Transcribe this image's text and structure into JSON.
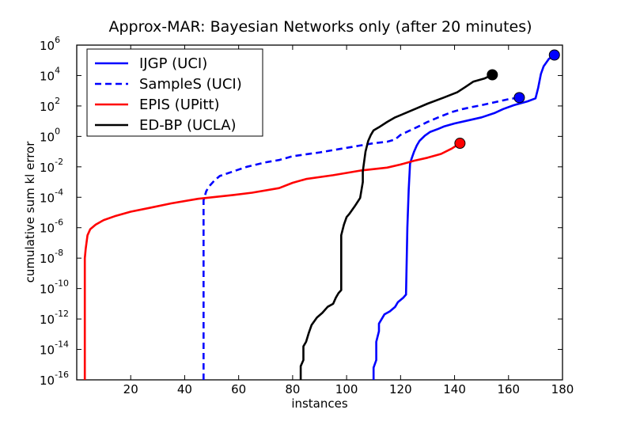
{
  "chart_data": {
    "type": "line",
    "title": "Approx-MAR: Bayesian Networks only (after 20 minutes)",
    "xlabel": "instances",
    "ylabel": "cumulative sum kl error",
    "xlim": [
      0,
      180
    ],
    "ylim_log10": [
      -16,
      6
    ],
    "yscale": "log",
    "x_ticks": [
      "20",
      "40",
      "60",
      "80",
      "100",
      "120",
      "140",
      "160",
      "180"
    ],
    "x_tick_values": [
      20,
      40,
      60,
      80,
      100,
      120,
      140,
      160,
      180
    ],
    "y_tick_base": "10",
    "y_tick_exponents": [
      "-16",
      "-14",
      "-12",
      "-10",
      "-8",
      "-6",
      "-4",
      "-2",
      "0",
      "2",
      "4",
      "6"
    ],
    "legend_placement": "top-left",
    "grid": false,
    "series": [
      {
        "name": "IJGP (UCI)",
        "color": "#0000ff",
        "dash": "solid",
        "points": [
          [
            110,
            -16
          ],
          [
            110,
            -15.2
          ],
          [
            111,
            -14.7
          ],
          [
            111,
            -13.5
          ],
          [
            112,
            -12.8
          ],
          [
            112,
            -12.3
          ],
          [
            113,
            -12
          ],
          [
            114,
            -11.7
          ],
          [
            116,
            -11.5
          ],
          [
            118,
            -11.2
          ],
          [
            119,
            -10.9
          ],
          [
            121,
            -10.6
          ],
          [
            122,
            -10.4
          ],
          [
            122.5,
            -6
          ],
          [
            123,
            -3.5
          ],
          [
            123.5,
            -1.8
          ],
          [
            124,
            -1.5
          ],
          [
            125,
            -1
          ],
          [
            126,
            -0.6
          ],
          [
            127,
            -0.3
          ],
          [
            129,
            0.05
          ],
          [
            131,
            0.3
          ],
          [
            134,
            0.5
          ],
          [
            136,
            0.65
          ],
          [
            140,
            0.85
          ],
          [
            145,
            1.05
          ],
          [
            150,
            1.25
          ],
          [
            155,
            1.55
          ],
          [
            158,
            1.8
          ],
          [
            162,
            2.05
          ],
          [
            167,
            2.3
          ],
          [
            170,
            2.5
          ],
          [
            171,
            3.2
          ],
          [
            172,
            4.1
          ],
          [
            173,
            4.6
          ],
          [
            175,
            5.1
          ],
          [
            177,
            5.35
          ]
        ],
        "marker_last": true
      },
      {
        "name": "SampleS (UCI)",
        "color": "#0000ff",
        "dash": "dashed",
        "points": [
          [
            47,
            -16
          ],
          [
            47,
            -4.2
          ],
          [
            48,
            -3.6
          ],
          [
            49,
            -3.3
          ],
          [
            51,
            -2.9
          ],
          [
            53,
            -2.6
          ],
          [
            58,
            -2.3
          ],
          [
            63,
            -2
          ],
          [
            70,
            -1.7
          ],
          [
            75,
            -1.55
          ],
          [
            80,
            -1.3
          ],
          [
            90,
            -1.05
          ],
          [
            100,
            -0.75
          ],
          [
            105,
            -0.6
          ],
          [
            110,
            -0.45
          ],
          [
            115,
            -0.35
          ],
          [
            118,
            -0.2
          ],
          [
            120,
            0.1
          ],
          [
            123,
            0.35
          ],
          [
            126,
            0.6
          ],
          [
            130,
            0.95
          ],
          [
            134,
            1.25
          ],
          [
            139,
            1.6
          ],
          [
            143,
            1.8
          ],
          [
            147,
            1.95
          ],
          [
            150,
            2.05
          ],
          [
            155,
            2.25
          ],
          [
            160,
            2.45
          ],
          [
            164,
            2.55
          ]
        ],
        "marker_last": true
      },
      {
        "name": "EPIS (UPitt)",
        "color": "#ff0000",
        "dash": "solid",
        "points": [
          [
            3,
            -16
          ],
          [
            3,
            -8
          ],
          [
            3.3,
            -7.4
          ],
          [
            4,
            -6.5
          ],
          [
            5,
            -6.1
          ],
          [
            7,
            -5.8
          ],
          [
            10,
            -5.5
          ],
          [
            14,
            -5.25
          ],
          [
            20,
            -4.95
          ],
          [
            27,
            -4.7
          ],
          [
            35,
            -4.4
          ],
          [
            45,
            -4.1
          ],
          [
            58,
            -3.85
          ],
          [
            65,
            -3.7
          ],
          [
            75,
            -3.4
          ],
          [
            80,
            -3.05
          ],
          [
            85,
            -2.8
          ],
          [
            95,
            -2.55
          ],
          [
            105,
            -2.25
          ],
          [
            115,
            -2.05
          ],
          [
            120,
            -1.85
          ],
          [
            125,
            -1.6
          ],
          [
            130,
            -1.4
          ],
          [
            135,
            -1.15
          ],
          [
            139,
            -0.8
          ],
          [
            142,
            -0.45
          ]
        ],
        "marker_last": true
      },
      {
        "name": "ED-BP (UCLA)",
        "color": "#000000",
        "dash": "solid",
        "points": [
          [
            83,
            -16
          ],
          [
            83,
            -15.1
          ],
          [
            84,
            -14.7
          ],
          [
            84,
            -13.8
          ],
          [
            85,
            -13.5
          ],
          [
            86,
            -12.9
          ],
          [
            87,
            -12.4
          ],
          [
            89,
            -11.9
          ],
          [
            91,
            -11.6
          ],
          [
            93,
            -11.2
          ],
          [
            95,
            -11
          ],
          [
            96,
            -10.6
          ],
          [
            97,
            -10.3
          ],
          [
            98,
            -10.1
          ],
          [
            98,
            -6.5
          ],
          [
            99,
            -5.8
          ],
          [
            100,
            -5.3
          ],
          [
            101,
            -5.1
          ],
          [
            103,
            -4.6
          ],
          [
            105,
            -4.05
          ],
          [
            106,
            -3
          ],
          [
            106,
            -2.3
          ],
          [
            107,
            -1
          ],
          [
            108,
            -0.3
          ],
          [
            109,
            0.1
          ],
          [
            110,
            0.4
          ],
          [
            112,
            0.6
          ],
          [
            115,
            0.95
          ],
          [
            118,
            1.25
          ],
          [
            122,
            1.55
          ],
          [
            126,
            1.85
          ],
          [
            130,
            2.15
          ],
          [
            136,
            2.55
          ],
          [
            141,
            2.9
          ],
          [
            144,
            3.25
          ],
          [
            147,
            3.6
          ],
          [
            151,
            3.8
          ],
          [
            154,
            4.05
          ]
        ],
        "marker_last": true
      }
    ]
  }
}
